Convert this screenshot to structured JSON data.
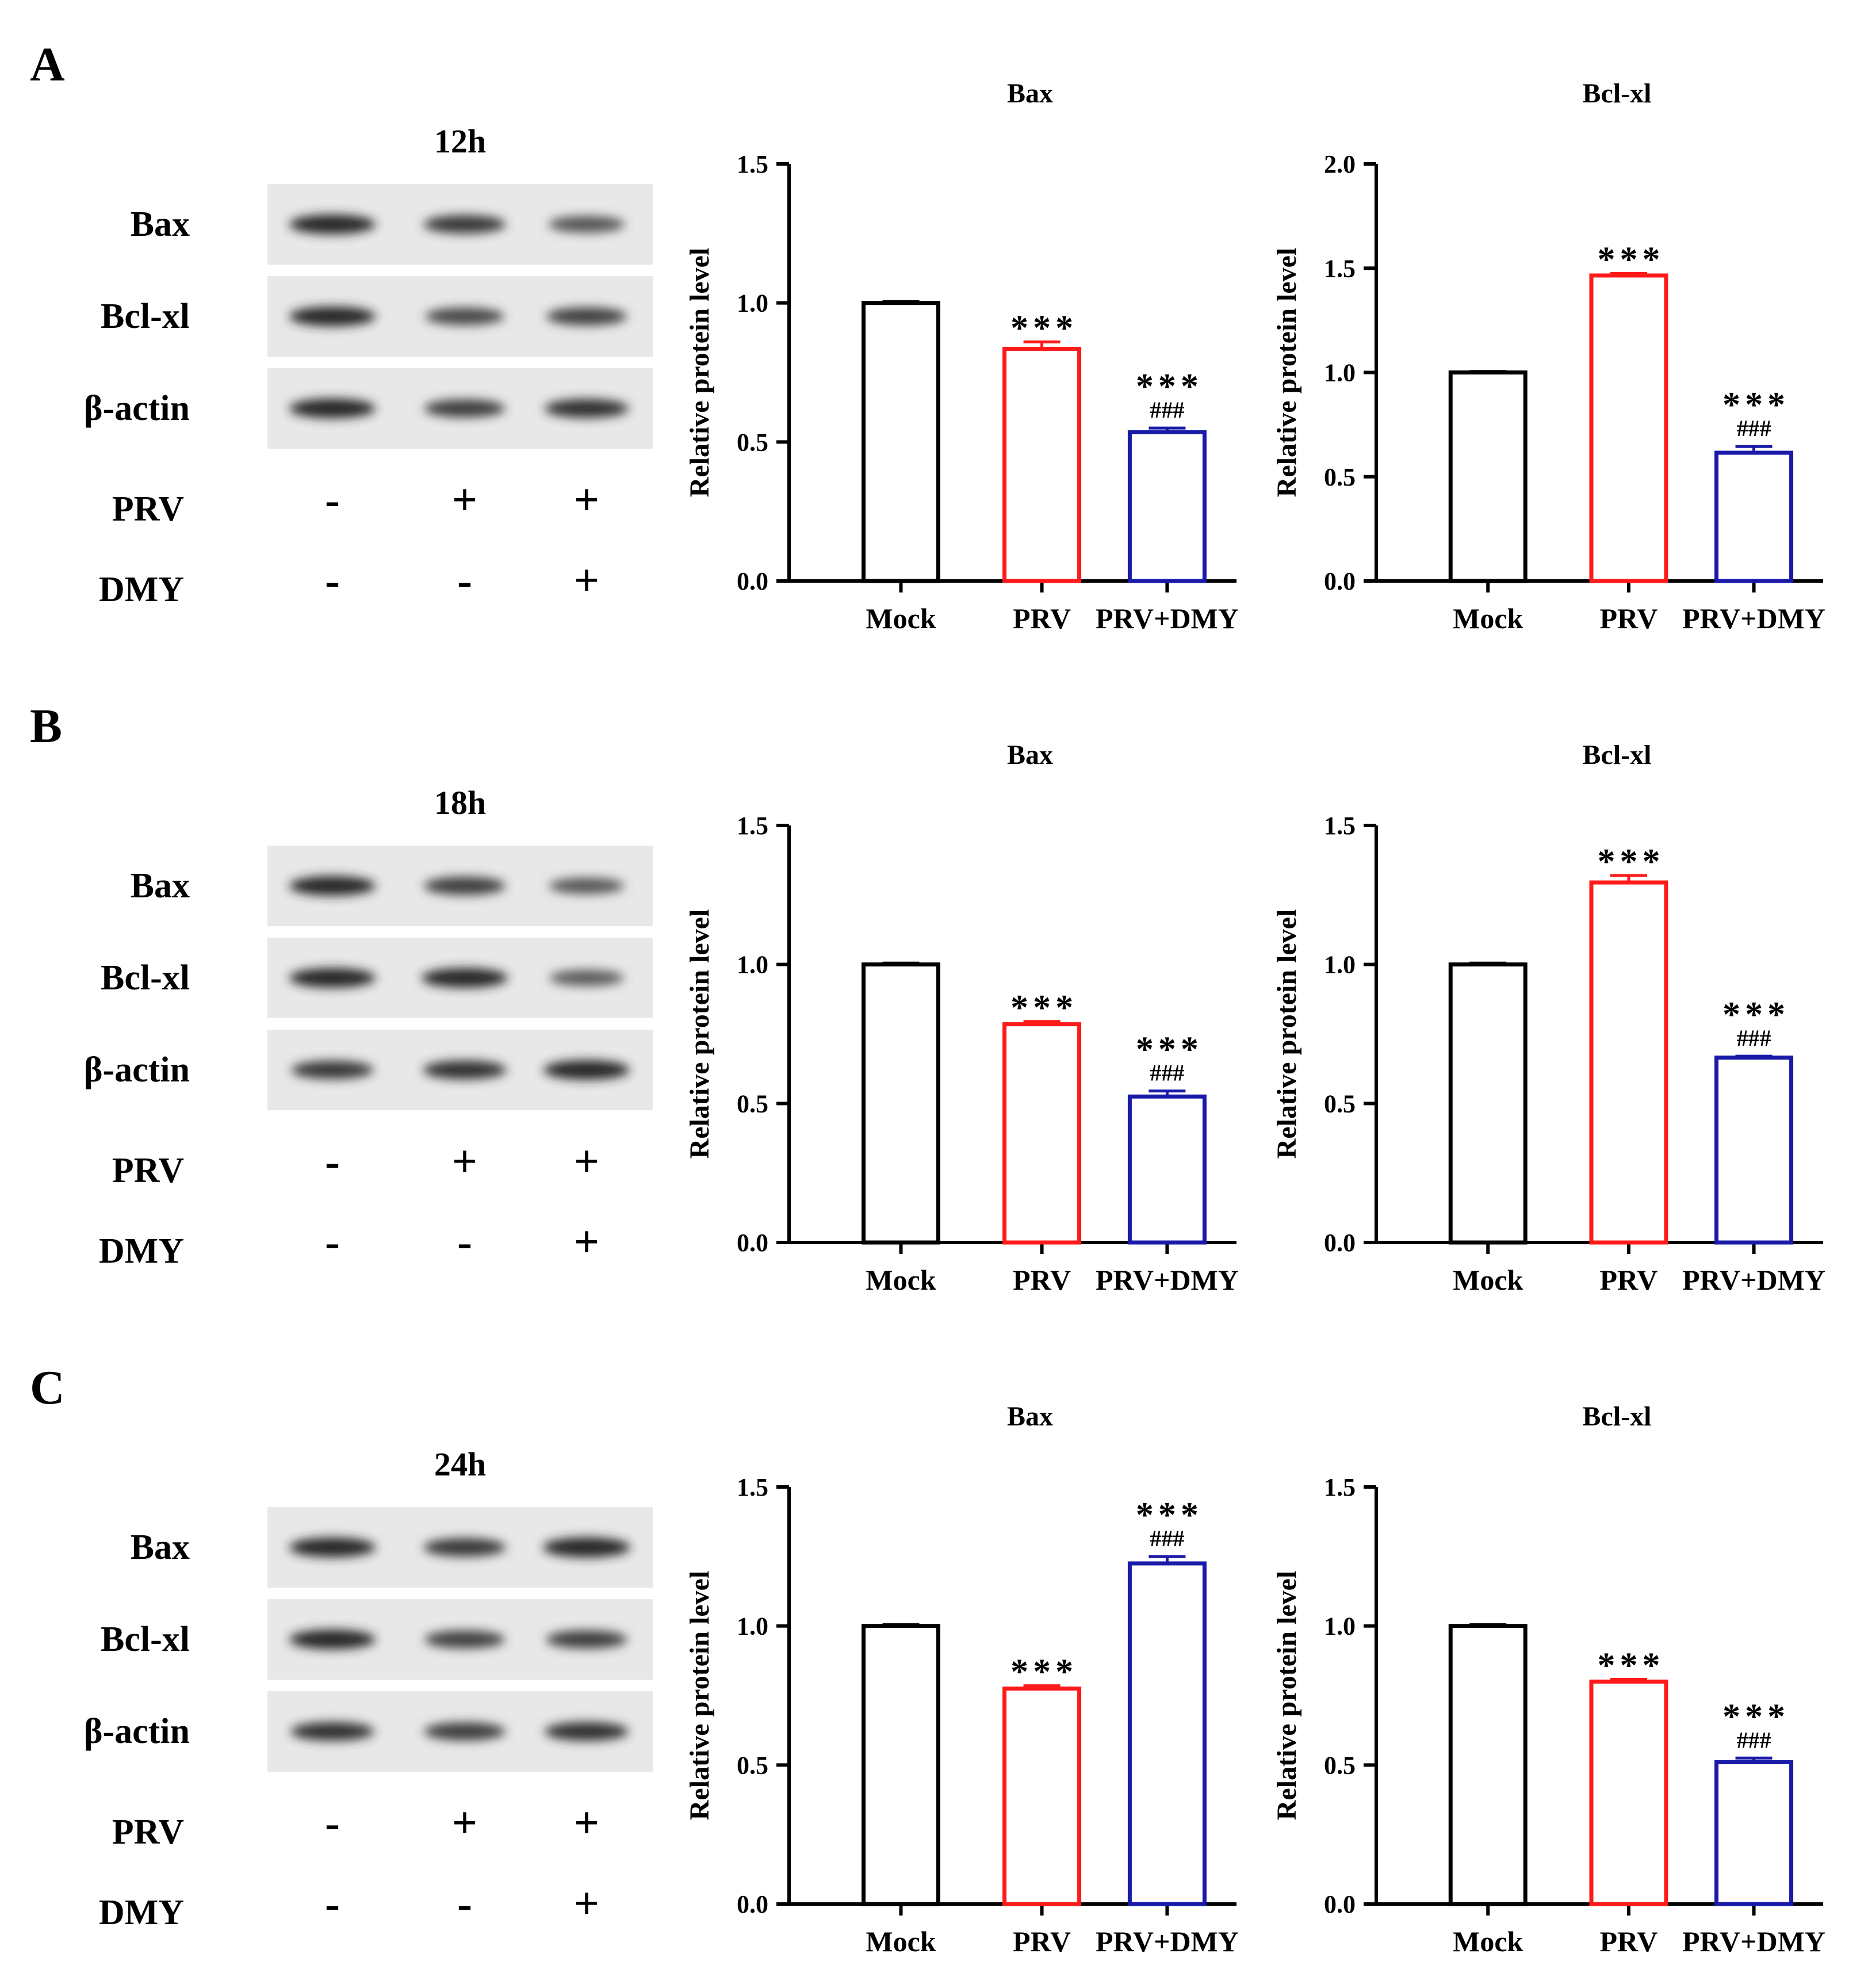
{
  "panels": [
    {
      "label": "A",
      "time": "12h",
      "blot": {
        "proteins": [
          "Bax",
          "Bcl-xl",
          "β-actin"
        ],
        "treatments": [
          {
            "name": "PRV",
            "signs": [
              "-",
              "+",
              "+"
            ]
          },
          {
            "name": "DMY",
            "signs": [
              "-",
              "-",
              "+"
            ]
          }
        ],
        "band_intensity": [
          [
            1.0,
            0.85,
            0.62
          ],
          [
            1.0,
            0.72,
            0.78
          ],
          [
            1.0,
            0.8,
            0.92
          ]
        ]
      }
    },
    {
      "label": "B",
      "time": "18h",
      "blot": {
        "proteins": [
          "Bax",
          "Bcl-xl",
          "β-actin"
        ],
        "treatments": [
          {
            "name": "PRV",
            "signs": [
              "-",
              "+",
              "+"
            ]
          },
          {
            "name": "DMY",
            "signs": [
              "-",
              "-",
              "+"
            ]
          }
        ],
        "band_intensity": [
          [
            1.0,
            0.82,
            0.58
          ],
          [
            1.0,
            1.0,
            0.55
          ],
          [
            0.85,
            0.9,
            1.0
          ]
        ]
      }
    },
    {
      "label": "C",
      "time": "24h",
      "blot": {
        "proteins": [
          "Bax",
          "Bcl-xl",
          "β-actin"
        ],
        "treatments": [
          {
            "name": "PRV",
            "signs": [
              "-",
              "+",
              "+"
            ]
          },
          {
            "name": "DMY",
            "signs": [
              "-",
              "-",
              "+"
            ]
          }
        ],
        "band_intensity": [
          [
            1.0,
            0.85,
            1.05
          ],
          [
            1.0,
            0.78,
            0.8
          ],
          [
            0.9,
            0.82,
            0.92
          ]
        ]
      }
    }
  ],
  "colors": {
    "Mock": "#000000",
    "PRV": "#ff1a1a",
    "PRV+DMY": "#1a1aa8"
  },
  "chart_data": [
    {
      "type": "bar",
      "panel": "A",
      "title": "Bax",
      "xlabel": "",
      "ylabel": "Relative protein level",
      "categories": [
        "Mock",
        "PRV",
        "PRV+DMY"
      ],
      "values": [
        1.0,
        0.835,
        0.535
      ],
      "errors": [
        0.005,
        0.025,
        0.015
      ],
      "ylim": [
        0,
        1.5
      ],
      "yticks": [
        "0.0",
        "0.5",
        "1.0",
        "1.5"
      ],
      "stars": [
        "",
        "***",
        "***"
      ],
      "hashes": [
        "",
        "",
        "###"
      ]
    },
    {
      "type": "bar",
      "panel": "A",
      "title": "Bcl-xl",
      "xlabel": "",
      "ylabel": "Relative protein level",
      "categories": [
        "Mock",
        "PRV",
        "PRV+DMY"
      ],
      "values": [
        1.0,
        1.465,
        0.615
      ],
      "errors": [
        0.005,
        0.01,
        0.03
      ],
      "ylim": [
        0,
        2.0
      ],
      "yticks": [
        "0.0",
        "0.5",
        "1.0",
        "1.5",
        "2.0"
      ],
      "stars": [
        "",
        "***",
        "***"
      ],
      "hashes": [
        "",
        "",
        "###"
      ]
    },
    {
      "type": "bar",
      "panel": "B",
      "title": "Bax",
      "xlabel": "",
      "ylabel": "Relative protein level",
      "categories": [
        "Mock",
        "PRV",
        "PRV+DMY"
      ],
      "values": [
        1.0,
        0.785,
        0.525
      ],
      "errors": [
        0.005,
        0.01,
        0.02
      ],
      "ylim": [
        0,
        1.5
      ],
      "yticks": [
        "0.0",
        "0.5",
        "1.0",
        "1.5"
      ],
      "stars": [
        "",
        "***",
        "***"
      ],
      "hashes": [
        "",
        "",
        "###"
      ]
    },
    {
      "type": "bar",
      "panel": "B",
      "title": "Bcl-xl",
      "xlabel": "",
      "ylabel": "Relative protein level",
      "categories": [
        "Mock",
        "PRV",
        "PRV+DMY"
      ],
      "values": [
        1.0,
        1.295,
        0.665
      ],
      "errors": [
        0.005,
        0.025,
        0.005
      ],
      "ylim": [
        0,
        1.5
      ],
      "yticks": [
        "0.0",
        "0.5",
        "1.0",
        "1.5"
      ],
      "stars": [
        "",
        "***",
        "***"
      ],
      "hashes": [
        "",
        "",
        "###"
      ]
    },
    {
      "type": "bar",
      "panel": "C",
      "title": "Bax",
      "xlabel": "",
      "ylabel": "Relative protein level",
      "categories": [
        "Mock",
        "PRV",
        "PRV+DMY"
      ],
      "values": [
        1.0,
        0.775,
        1.225
      ],
      "errors": [
        0.005,
        0.01,
        0.025
      ],
      "ylim": [
        0,
        1.5
      ],
      "yticks": [
        "0.0",
        "0.5",
        "1.0",
        "1.5"
      ],
      "stars": [
        "",
        "***",
        "***"
      ],
      "hashes": [
        "",
        "",
        "###"
      ]
    },
    {
      "type": "bar",
      "panel": "C",
      "title": "Bcl-xl",
      "xlabel": "",
      "ylabel": "Relative protein level",
      "categories": [
        "Mock",
        "PRV",
        "PRV+DMY"
      ],
      "values": [
        1.0,
        0.8,
        0.51
      ],
      "errors": [
        0.005,
        0.008,
        0.015
      ],
      "ylim": [
        0,
        1.5
      ],
      "yticks": [
        "0.0",
        "0.5",
        "1.0",
        "1.5"
      ],
      "stars": [
        "",
        "***",
        "***"
      ],
      "hashes": [
        "",
        "",
        "###"
      ]
    }
  ]
}
